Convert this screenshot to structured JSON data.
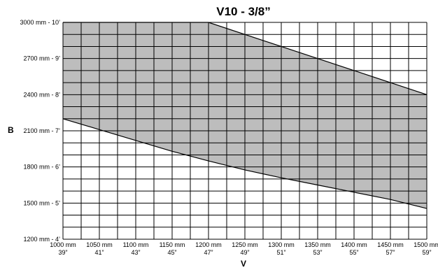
{
  "chart_data": {
    "type": "area",
    "title": "V10 - 3/8”",
    "xlabel": "V",
    "ylabel": "B",
    "xlim": [
      1000,
      1500
    ],
    "ylim": [
      1200,
      3000
    ],
    "x_ticks": [
      {
        "value": 1000,
        "mm": "1000 mm",
        "inch": "39”"
      },
      {
        "value": 1050,
        "mm": "1050 mm",
        "inch": "41”"
      },
      {
        "value": 1100,
        "mm": "1100 mm",
        "inch": "43”"
      },
      {
        "value": 1150,
        "mm": "1150 mm",
        "inch": "45”"
      },
      {
        "value": 1200,
        "mm": "1200 mm",
        "inch": "47”"
      },
      {
        "value": 1250,
        "mm": "1250 mm",
        "inch": "49”"
      },
      {
        "value": 1300,
        "mm": "1300 mm",
        "inch": "51”"
      },
      {
        "value": 1350,
        "mm": "1350 mm",
        "inch": "53”"
      },
      {
        "value": 1400,
        "mm": "1400 mm",
        "inch": "55”"
      },
      {
        "value": 1450,
        "mm": "1450 mm",
        "inch": "57”"
      },
      {
        "value": 1500,
        "mm": "1500 mm",
        "inch": "59”"
      }
    ],
    "y_ticks": [
      {
        "value": 1200,
        "label": "1200 mm - 4’"
      },
      {
        "value": 1500,
        "label": "1500 mm - 5’"
      },
      {
        "value": 1800,
        "label": "1800 mm - 6’"
      },
      {
        "value": 2100,
        "label": "2100 mm - 7’"
      },
      {
        "value": 2400,
        "label": "2400 mm - 8’"
      },
      {
        "value": 2700,
        "label": "2700 mm - 9’"
      },
      {
        "value": 3000,
        "label": "3000 mm - 10’"
      }
    ],
    "grid": true,
    "grid_x_step": 25,
    "grid_y_step": 100,
    "fill_color": "#bdbdbd",
    "upper_boundary": [
      {
        "x": 1000,
        "y": 3000
      },
      {
        "x": 1200,
        "y": 3000
      },
      {
        "x": 1500,
        "y": 2400
      }
    ],
    "lower_boundary": [
      {
        "x": 1000,
        "y": 2200
      },
      {
        "x": 1050,
        "y": 2110
      },
      {
        "x": 1100,
        "y": 2020
      },
      {
        "x": 1150,
        "y": 1930
      },
      {
        "x": 1200,
        "y": 1850
      },
      {
        "x": 1250,
        "y": 1775
      },
      {
        "x": 1300,
        "y": 1710
      },
      {
        "x": 1350,
        "y": 1650
      },
      {
        "x": 1400,
        "y": 1590
      },
      {
        "x": 1450,
        "y": 1530
      },
      {
        "x": 1500,
        "y": 1455
      }
    ]
  }
}
